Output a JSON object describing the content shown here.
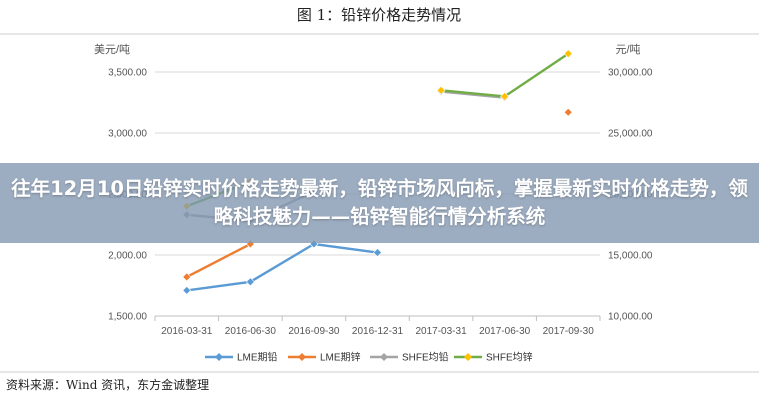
{
  "figure": {
    "title": "图 1：铅锌价格走势情况",
    "source": "资料来源：Wind 资讯，东方金诚整理"
  },
  "banner": {
    "text": "往年12月10日铅锌实时价格走势最新，铅锌市场风向标，掌握最新实时价格走势，领略科技魅力——铅锌智能行情分析系统"
  },
  "chart_data": {
    "type": "line",
    "categories": [
      "2016-03-31",
      "2016-06-30",
      "2016-09-30",
      "2016-12-31",
      "2017-03-31",
      "2017-06-30",
      "2017-09-30"
    ],
    "left_axis": {
      "unit": "美元/吨",
      "ylim": [
        1500,
        3500
      ],
      "ticks": [
        "1,500.00",
        "2,000.00",
        "2,500.00",
        "3,000.00",
        "3,500.00"
      ],
      "tick_values": [
        1500,
        2000,
        2500,
        3000,
        3500
      ]
    },
    "right_axis": {
      "unit": "元/吨",
      "ylim": [
        10000,
        30000
      ],
      "ticks": [
        "10,000.00",
        "15,000.00",
        "20,000.00",
        "25,000.00",
        "30,000.00"
      ],
      "tick_values": [
        10000,
        15000,
        20000,
        25000,
        30000
      ]
    },
    "grid": true,
    "legend_position": "bottom",
    "series": [
      {
        "name": "LME期铅",
        "axis": "left",
        "color": "#5b9bd5",
        "marker": "diamond",
        "values": [
          1710,
          1780,
          2090,
          2020,
          null,
          null,
          null
        ]
      },
      {
        "name": "LME期锌",
        "axis": "left",
        "color": "#ed7d31",
        "marker": "diamond",
        "values": [
          1820,
          2090,
          null,
          null,
          null,
          null,
          3170
        ]
      },
      {
        "name": "SHFE均铅",
        "axis": "right",
        "color": "#a5a5a5",
        "marker": "diamond",
        "values": [
          18300,
          17800,
          20200,
          null,
          28400,
          27900,
          null
        ]
      },
      {
        "name": "SHFE均锌",
        "axis": "right",
        "color": "#ffc000",
        "line_color": "#70ad47",
        "marker": "diamond",
        "values": [
          19000,
          21000,
          null,
          null,
          28500,
          28000,
          31500
        ]
      }
    ]
  }
}
